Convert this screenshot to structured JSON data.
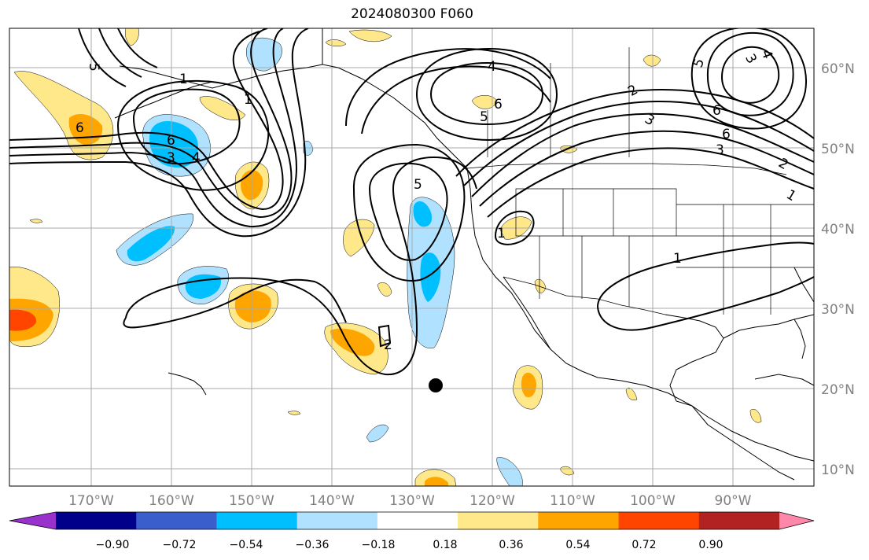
{
  "title": "2024080300 F060",
  "longitude_labels": [
    "170°W",
    "160°W",
    "150°W",
    "140°W",
    "130°W",
    "120°W",
    "110°W",
    "100°W",
    "90°W"
  ],
  "latitude_labels": [
    "60°N",
    "50°N",
    "40°N",
    "30°N",
    "20°N",
    "10°N"
  ],
  "colorbar": {
    "ticks": [
      "−0.90",
      "−0.72",
      "−0.54",
      "−0.36",
      "−0.18",
      "0.18",
      "0.36",
      "0.54",
      "0.72",
      "0.90"
    ],
    "colors": [
      "#9932cc",
      "#00008b",
      "#3a5fcd",
      "#00bfff",
      "#b0e2ff",
      "#ffffff",
      "#ffe88a",
      "#ffa500",
      "#ff4500",
      "#b22222",
      "#ff88aa"
    ]
  },
  "colors": {
    "neg_light": "#b0e2ff",
    "neg_mid": "#00bfff",
    "pos_light": "#ffe88a",
    "pos_mid": "#ffa500",
    "pos_high": "#ff4500",
    "contour": "#000000",
    "coast": "#000000",
    "grid": "#a9a9a9"
  },
  "contour_labels": [
    "5",
    "1",
    "6",
    "3",
    "4",
    "1",
    "4",
    "6",
    "5",
    "5",
    "2",
    "1",
    "1",
    "5",
    "3",
    "4",
    "6",
    "6",
    "3",
    "3",
    "6",
    "2",
    "2",
    "1"
  ],
  "marker": "storm-position-dot"
}
